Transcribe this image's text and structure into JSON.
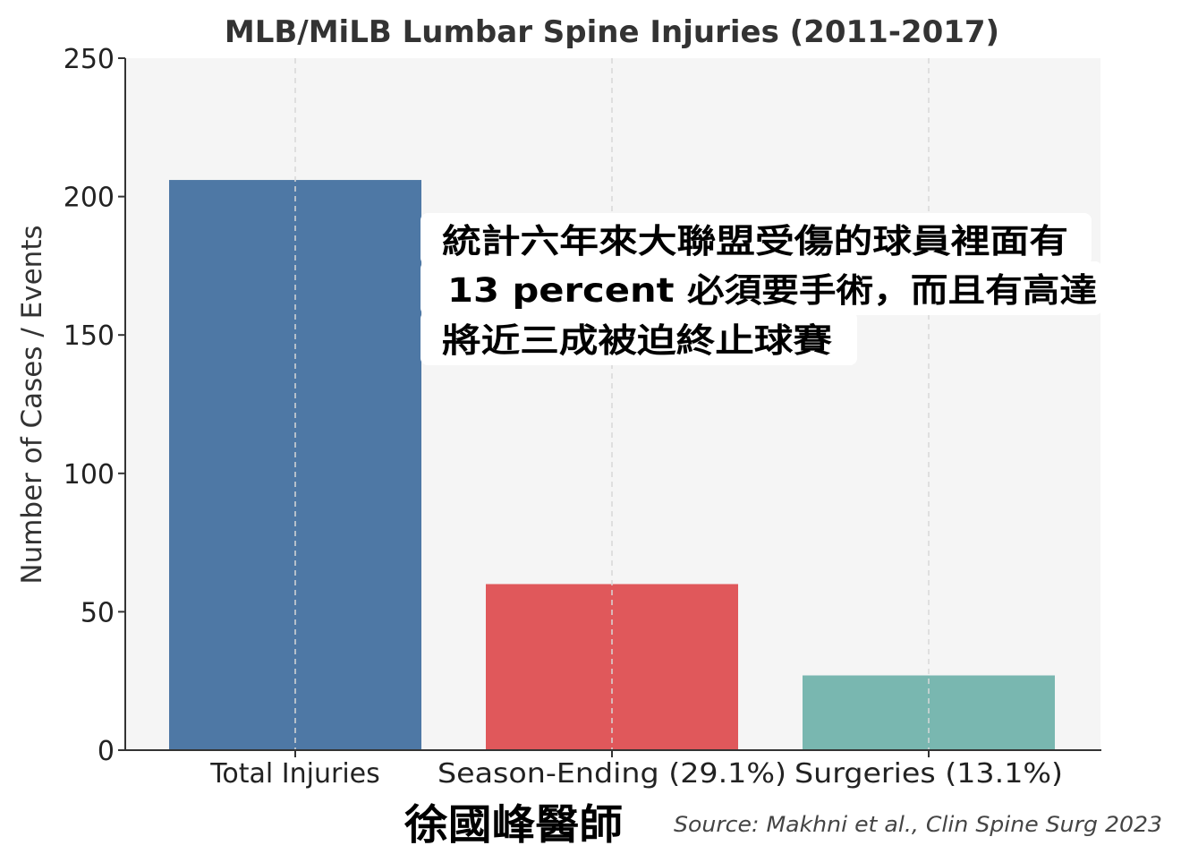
{
  "chart_data": {
    "type": "bar",
    "title": "MLB/MiLB Lumbar Spine Injuries (2011-2017)",
    "xlabel": "",
    "ylabel": "Number of Cases / Events",
    "categories": [
      "Total Injuries",
      "Season-Ending (29.1%)",
      "Surgeries (13.1%)"
    ],
    "values": [
      206,
      60,
      27
    ],
    "colors": [
      "#4e78a5",
      "#e0585b",
      "#79b7b0"
    ],
    "ylim": [
      0,
      250
    ],
    "yticks": [
      0,
      50,
      100,
      150,
      200,
      250
    ],
    "grid": "vertical dashed at categories",
    "plot_background": "#f5f5f5"
  },
  "annotation": {
    "lines": [
      "統計六年來大聯盟受傷的球員裡面有",
      "13 percent 必須要手術，而且有高達",
      "將近三成被迫終止球賽"
    ]
  },
  "author": "徐國峰醫師",
  "source": "Source: Makhni et al., Clin Spine Surg 2023"
}
